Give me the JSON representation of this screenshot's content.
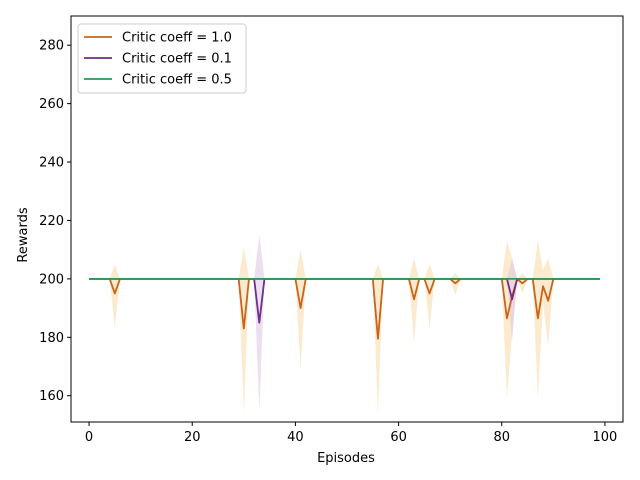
{
  "chart_data": {
    "type": "line",
    "title": "",
    "xlabel": "Episodes",
    "ylabel": "Rewards",
    "xlim": [
      -3.5,
      103.5
    ],
    "ylim": [
      151,
      290
    ],
    "xticks": [
      0,
      20,
      40,
      60,
      80,
      100
    ],
    "yticks": [
      160,
      180,
      200,
      220,
      240,
      260,
      280
    ],
    "grid": false,
    "legend_position": "upper-left",
    "n_episodes": 100,
    "baseline_value": 200,
    "series": [
      {
        "name": "Critic coeff = 1.0",
        "color": "#c8651b",
        "band_color": "#f9d9a5",
        "dips": [
          {
            "x": 5,
            "mean": 195,
            "low": 183,
            "high": 205
          },
          {
            "x": 30,
            "mean": 183,
            "low": 154,
            "high": 211
          },
          {
            "x": 41,
            "mean": 190,
            "low": 169,
            "high": 210
          },
          {
            "x": 56,
            "mean": 179.5,
            "low": 154,
            "high": 205
          },
          {
            "x": 63,
            "mean": 193,
            "low": 178,
            "high": 207
          },
          {
            "x": 66,
            "mean": 195,
            "low": 183,
            "high": 205
          },
          {
            "x": 71,
            "mean": 198.5,
            "low": 194.5,
            "high": 202
          },
          {
            "x": 81,
            "mean": 186.5,
            "low": 159,
            "high": 213
          },
          {
            "x": 82,
            "mean": 194,
            "low": 181,
            "high": 207
          },
          {
            "x": 84,
            "mean": 198.5,
            "low": 195,
            "high": 202
          },
          {
            "x": 87,
            "mean": 186.5,
            "low": 159,
            "high": 213
          },
          {
            "x": 88,
            "mean": 197.5,
            "low": 192,
            "high": 203
          },
          {
            "x": 89,
            "mean": 192.5,
            "low": 177,
            "high": 207
          }
        ]
      },
      {
        "name": "Critic coeff = 0.1",
        "color": "#6e2f86",
        "band_color": "#dcc5e4",
        "dips": [
          {
            "x": 33,
            "mean": 185,
            "low": 155,
            "high": 215
          },
          {
            "x": 82,
            "mean": 193,
            "low": 179,
            "high": 207
          }
        ]
      },
      {
        "name": "Critic coeff = 0.5",
        "color": "#2a9a52",
        "band_color": "#bfe3c8",
        "dips": []
      }
    ]
  }
}
